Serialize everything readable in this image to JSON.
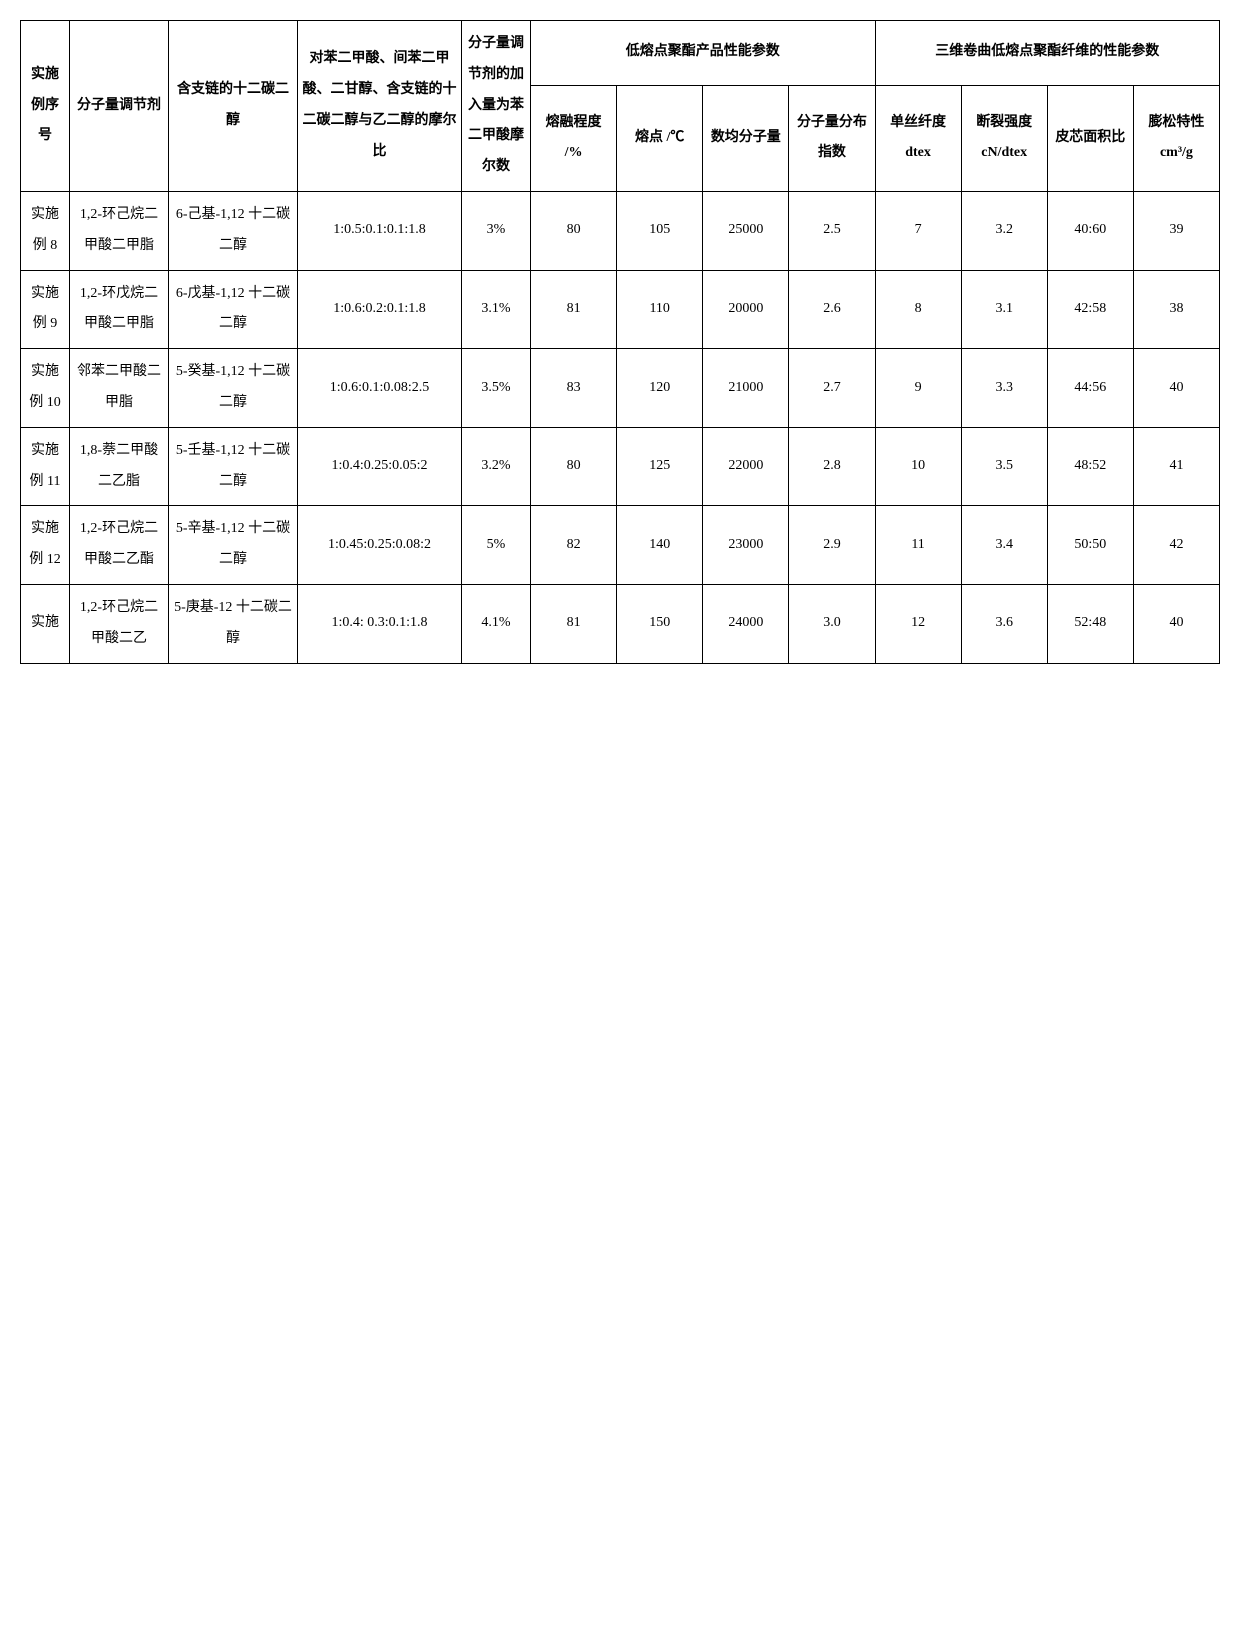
{
  "headers": {
    "col1": "实施例序号",
    "col2": "分子量调节剂",
    "col3": "含支链的十二碳二醇",
    "col4": "对苯二甲酸、间苯二甲酸、二甘醇、含支链的十二碳二醇与乙二醇的摩尔比",
    "col5": "分子量调节剂的加入量为苯二甲酸摩尔数",
    "group1": "低熔点聚酯产品性能参数",
    "group2": "三维卷曲低熔点聚酯纤维的性能参数",
    "col6": "熔融程度 /%",
    "col7": "熔点 /℃",
    "col8": "数均分子量",
    "col9": "分子量分布指数",
    "col10": "单丝纤度 dtex",
    "col11": "断裂强度 cN/dtex",
    "col12": "皮芯面积比",
    "col13": "膨松特性 cm³/g"
  },
  "rows": [
    {
      "id": "实施例 8",
      "mol": "1,2-环己烷二甲酸二甲脂",
      "branch": "6-己基-1,12 十二碳二醇",
      "ratio": "1:0.5:0.1:0.1:1.8",
      "add": "3%",
      "melt": "80",
      "temp": "105",
      "mw": "25000",
      "pdi": "2.5",
      "dtex": "7",
      "cn": "3.2",
      "skin": "40:60",
      "bulk": "39"
    },
    {
      "id": "实施例 9",
      "mol": "1,2-环戊烷二甲酸二甲脂",
      "branch": "6-戊基-1,12 十二碳二醇",
      "ratio": "1:0.6:0.2:0.1:1.8",
      "add": "3.1%",
      "melt": "81",
      "temp": "110",
      "mw": "20000",
      "pdi": "2.6",
      "dtex": "8",
      "cn": "3.1",
      "skin": "42:58",
      "bulk": "38"
    },
    {
      "id": "实施例 10",
      "mol": "邻苯二甲酸二甲脂",
      "branch": "5-癸基-1,12 十二碳二醇",
      "ratio": "1:0.6:0.1:0.08:2.5",
      "add": "3.5%",
      "melt": "83",
      "temp": "120",
      "mw": "21000",
      "pdi": "2.7",
      "dtex": "9",
      "cn": "3.3",
      "skin": "44:56",
      "bulk": "40"
    },
    {
      "id": "实施例 11",
      "mol": "1,8-萘二甲酸二乙脂",
      "branch": "5-壬基-1,12 十二碳二醇",
      "ratio": "1:0.4:0.25:0.05:2",
      "add": "3.2%",
      "melt": "80",
      "temp": "125",
      "mw": "22000",
      "pdi": "2.8",
      "dtex": "10",
      "cn": "3.5",
      "skin": "48:52",
      "bulk": "41"
    },
    {
      "id": "实施例 12",
      "mol": "1,2-环己烷二甲酸二乙酯",
      "branch": "5-辛基-1,12 十二碳二醇",
      "ratio": "1:0.45:0.25:0.08:2",
      "add": "5%",
      "melt": "82",
      "temp": "140",
      "mw": "23000",
      "pdi": "2.9",
      "dtex": "11",
      "cn": "3.4",
      "skin": "50:50",
      "bulk": "42"
    },
    {
      "id": "实施",
      "mol": "1,2-环己烷二甲酸二乙",
      "branch": "5-庚基-12 十二碳二醇",
      "ratio": "1:0.4: 0.3:0.1:1.8",
      "add": "4.1%",
      "melt": "81",
      "temp": "150",
      "mw": "24000",
      "pdi": "3.0",
      "dtex": "12",
      "cn": "3.6",
      "skin": "52:48",
      "bulk": "40"
    }
  ]
}
